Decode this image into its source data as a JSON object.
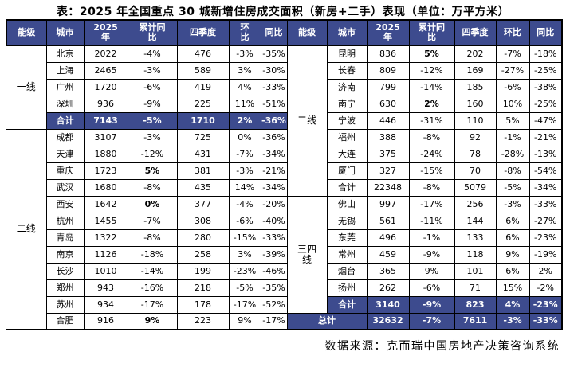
{
  "title": "表：2025 年全国重点 30 城新增住房成交面积（新房+二手）表现（单位：万平方米）",
  "source": "数据来源：克而瑞中国房地产决策咨询系统",
  "colors": {
    "header_bg": "#3d4b8e",
    "header_text": "#ffffff",
    "highlight_row_bg": "#3d4b8e",
    "highlight_row_text": "#ffffff",
    "border": "#000000",
    "body_text": "#000000"
  },
  "chart_data": {
    "type": "table",
    "title": "2025 年全国重点 30 城新增住房成交面积（新房+二手）表现",
    "unit": "万平方米",
    "columns": [
      "能级",
      "城市",
      "2025年",
      "累计同比",
      "四季度",
      "环比",
      "同比"
    ],
    "header_left": [
      "能级",
      "城市",
      "2025\n年",
      "累计同\n比",
      "四季度",
      "环\n比",
      "同比"
    ],
    "header_right": [
      "能级",
      "城市",
      "2025\n年",
      "累计同\n比",
      "四季度",
      "环比",
      "同比"
    ],
    "rows": [
      {
        "left": {
          "tier": "一线",
          "tier_span": 5,
          "city": "北京",
          "values": [
            "2022",
            "-4%",
            "476",
            "-3%",
            "-35%"
          ]
        },
        "right": {
          "tier": "二线",
          "tier_span": 9,
          "city": "昆明",
          "values": [
            "836",
            "5%",
            "202",
            "-7%",
            "-18%"
          ],
          "bold_idx": [
            1
          ]
        }
      },
      {
        "left": {
          "city": "上海",
          "values": [
            "2465",
            "-3%",
            "589",
            "3%",
            "-30%"
          ]
        },
        "right": {
          "city": "长春",
          "values": [
            "809",
            "-12%",
            "169",
            "-27%",
            "-25%"
          ]
        }
      },
      {
        "left": {
          "city": "广州",
          "values": [
            "1720",
            "-6%",
            "419",
            "4%",
            "-33%"
          ]
        },
        "right": {
          "city": "济南",
          "values": [
            "799",
            "-14%",
            "185",
            "-6%",
            "-38%"
          ]
        }
      },
      {
        "left": {
          "city": "深圳",
          "values": [
            "936",
            "-9%",
            "225",
            "11%",
            "-51%"
          ]
        },
        "right": {
          "city": "南宁",
          "values": [
            "630",
            "2%",
            "160",
            "10%",
            "-25%"
          ],
          "bold_idx": [
            1
          ]
        }
      },
      {
        "left": {
          "city": "合计",
          "values": [
            "7143",
            "-5%",
            "1710",
            "2%",
            "-36%"
          ],
          "hl": true
        },
        "right": {
          "city": "宁波",
          "values": [
            "446",
            "-31%",
            "110",
            "5%",
            "-47%"
          ]
        }
      },
      {
        "left": {
          "tier": "二线",
          "tier_span": 12,
          "city": "成都",
          "values": [
            "3107",
            "-3%",
            "725",
            "0%",
            "-36%"
          ]
        },
        "right": {
          "city": "福州",
          "values": [
            "388",
            "-8%",
            "92",
            "-1%",
            "-21%"
          ]
        }
      },
      {
        "left": {
          "city": "天津",
          "values": [
            "1880",
            "-12%",
            "431",
            "-7%",
            "-34%"
          ]
        },
        "right": {
          "city": "大连",
          "values": [
            "375",
            "-24%",
            "78",
            "-28%",
            "-13%"
          ]
        }
      },
      {
        "left": {
          "city": "重庆",
          "values": [
            "1723",
            "5%",
            "381",
            "-3%",
            "-21%"
          ],
          "bold_idx": [
            1
          ]
        },
        "right": {
          "city": "厦门",
          "values": [
            "327",
            "-15%",
            "70",
            "-8%",
            "-54%"
          ]
        }
      },
      {
        "left": {
          "city": "武汉",
          "values": [
            "1680",
            "-8%",
            "435",
            "14%",
            "-34%"
          ]
        },
        "right": {
          "city": "合计",
          "values": [
            "22348",
            "-8%",
            "5079",
            "-5%",
            "-34%"
          ]
        }
      },
      {
        "left": {
          "city": "西安",
          "values": [
            "1642",
            "0%",
            "377",
            "-4%",
            "-20%"
          ],
          "bold_idx": [
            1
          ]
        },
        "right": {
          "tier": "三四\n线",
          "tier_span": 7,
          "city": "佛山",
          "values": [
            "997",
            "-17%",
            "256",
            "-3%",
            "-33%"
          ]
        }
      },
      {
        "left": {
          "city": "杭州",
          "values": [
            "1455",
            "-7%",
            "308",
            "-6%",
            "-40%"
          ]
        },
        "right": {
          "city": "无锡",
          "values": [
            "561",
            "-11%",
            "144",
            "6%",
            "-27%"
          ]
        }
      },
      {
        "left": {
          "city": "青岛",
          "values": [
            "1322",
            "-8%",
            "280",
            "-15%",
            "-33%"
          ]
        },
        "right": {
          "city": "东莞",
          "values": [
            "496",
            "-1%",
            "133",
            "6%",
            "-23%"
          ]
        }
      },
      {
        "left": {
          "city": "南京",
          "values": [
            "1126",
            "-18%",
            "258",
            "3%",
            "-39%"
          ]
        },
        "right": {
          "city": "常州",
          "values": [
            "459",
            "-9%",
            "118",
            "9%",
            "-19%"
          ]
        }
      },
      {
        "left": {
          "city": "长沙",
          "values": [
            "1010",
            "-14%",
            "199",
            "-23%",
            "-46%"
          ]
        },
        "right": {
          "city": "烟台",
          "values": [
            "365",
            "9%",
            "101",
            "6%",
            "2%"
          ]
        }
      },
      {
        "left": {
          "city": "郑州",
          "values": [
            "943",
            "-16%",
            "218",
            "-5%",
            "-35%"
          ]
        },
        "right": {
          "city": "扬州",
          "values": [
            "262",
            "-6%",
            "71",
            "15%",
            "-2%"
          ]
        }
      },
      {
        "left": {
          "city": "苏州",
          "values": [
            "934",
            "-17%",
            "178",
            "-17%",
            "-52%"
          ]
        },
        "right": {
          "city": "合计",
          "values": [
            "3140",
            "-9%",
            "823",
            "4%",
            "-23%"
          ],
          "hl": true
        }
      },
      {
        "left": {
          "city": "合肥",
          "values": [
            "916",
            "9%",
            "223",
            "9%",
            "-17%"
          ],
          "bold_idx": [
            1
          ]
        },
        "right": {
          "city": "总计",
          "values": [
            "32632",
            "-7%",
            "7611",
            "-3%",
            "-33%"
          ],
          "hl": true,
          "label_colspan": 2
        }
      }
    ]
  }
}
